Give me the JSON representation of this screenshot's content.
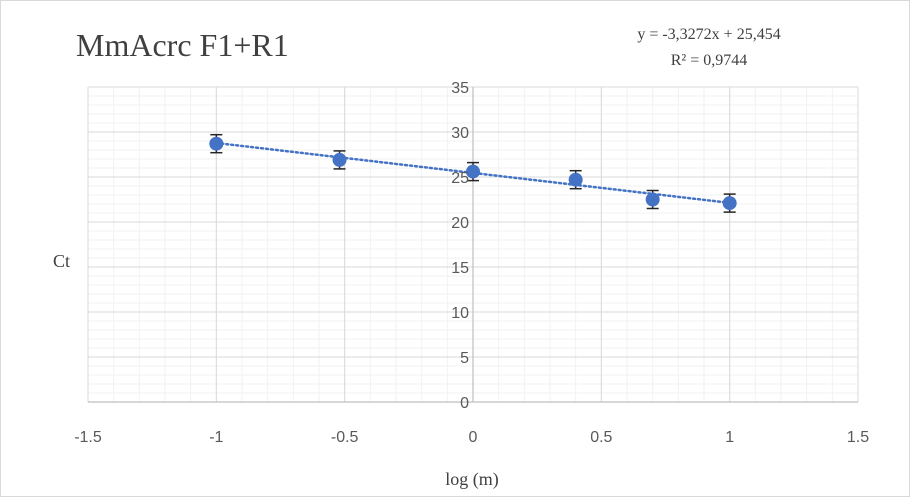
{
  "chart_data": {
    "type": "scatter",
    "title": "MmAcrc F1+R1",
    "xlabel": "log (m)",
    "ylabel": "Ct",
    "xlim": [
      -1.5,
      1.5
    ],
    "ylim": [
      0,
      35
    ],
    "x_major_step": 0.5,
    "x_minor_step": 0.1,
    "y_major_step": 5,
    "y_minor_step": 1,
    "x_tick_labels": [
      "-1.5",
      "-1",
      "-0.5",
      "0",
      "0.5",
      "1",
      "1.5"
    ],
    "y_tick_labels": [
      "0",
      "5",
      "10",
      "15",
      "20",
      "25",
      "30",
      "35"
    ],
    "grid": true,
    "error_bars": true,
    "error_bar_value": 1,
    "series": [
      {
        "x": [
          -1,
          -0.52,
          0,
          0.4,
          0.7,
          1
        ],
        "y": [
          28.7,
          26.9,
          25.6,
          24.7,
          22.5,
          22.1
        ]
      }
    ],
    "trendline": {
      "type": "linear",
      "slope": -3.3272,
      "intercept": 25.454,
      "equation": "y = -3,3272x + 25,454",
      "r_squared": "R² = 0,9744"
    },
    "colors": {
      "marker": "#4472c4",
      "trendline": "#4472c4",
      "error_bar": "#262626",
      "major_grid": "#d9d9d9",
      "minor_grid": "#f2f2f2",
      "axis": "#bfbfbf"
    }
  }
}
